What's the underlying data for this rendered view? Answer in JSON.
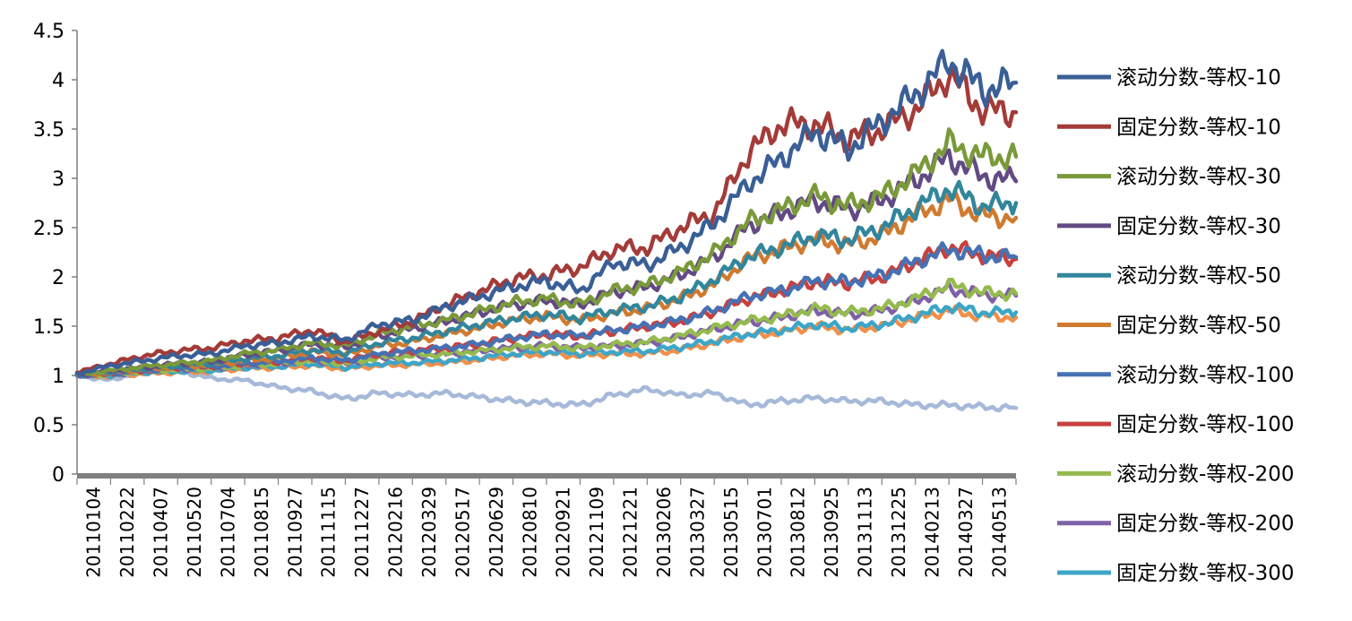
{
  "chart_data": {
    "type": "line",
    "title": "",
    "xlabel": "",
    "ylabel": "",
    "ylim": [
      0,
      4.5
    ],
    "yticks": [
      "0",
      "0.5",
      "1",
      "1.5",
      "2",
      "2.5",
      "3",
      "3.5",
      "4",
      "4.5"
    ],
    "ytick_values": [
      0,
      0.5,
      1,
      1.5,
      2,
      2.5,
      3,
      3.5,
      4,
      4.5
    ],
    "x_tick_labels": [
      "20110104",
      "20110222",
      "20110407",
      "20110520",
      "20110704",
      "20110815",
      "20110927",
      "20111115",
      "20111227",
      "20120216",
      "20120329",
      "20120517",
      "20120629",
      "20120810",
      "20120921",
      "20121109",
      "20121221",
      "20130206",
      "20130327",
      "20130515",
      "20130701",
      "20130812",
      "20130925",
      "20131113",
      "20131225",
      "20140213",
      "20140327",
      "20140513"
    ],
    "legend_position": "right",
    "series": [
      {
        "name": "滚动分数-等权-10",
        "color": "#3A5F96",
        "values": [
          1.02,
          1.1,
          1.15,
          1.2,
          1.22,
          1.3,
          1.33,
          1.4,
          1.36,
          1.52,
          1.56,
          1.7,
          1.8,
          1.9,
          1.96,
          1.86,
          2.15,
          2.12,
          2.3,
          2.55,
          2.95,
          3.2,
          3.48,
          3.3,
          3.58,
          3.85,
          4.2,
          3.9,
          3.97
        ]
      },
      {
        "name": "固定分数-等权-10",
        "color": "#A33B39",
        "values": [
          1.03,
          1.12,
          1.2,
          1.25,
          1.28,
          1.35,
          1.38,
          1.46,
          1.34,
          1.45,
          1.55,
          1.72,
          1.85,
          1.98,
          2.02,
          2.1,
          2.28,
          2.3,
          2.5,
          2.65,
          3.25,
          3.55,
          3.55,
          3.4,
          3.5,
          3.7,
          4.05,
          3.7,
          3.67
        ]
      },
      {
        "name": "滚动分数-等权-30",
        "color": "#7A9A3A",
        "values": [
          1.01,
          1.05,
          1.09,
          1.12,
          1.15,
          1.22,
          1.26,
          1.33,
          1.3,
          1.42,
          1.5,
          1.56,
          1.65,
          1.74,
          1.78,
          1.72,
          1.86,
          1.92,
          2.05,
          2.24,
          2.55,
          2.68,
          2.82,
          2.72,
          2.82,
          3.05,
          3.35,
          3.22,
          3.22
        ]
      },
      {
        "name": "固定分数-等权-30",
        "color": "#624A84",
        "values": [
          1.01,
          1.05,
          1.08,
          1.12,
          1.14,
          1.21,
          1.25,
          1.32,
          1.29,
          1.4,
          1.48,
          1.55,
          1.64,
          1.72,
          1.76,
          1.72,
          1.85,
          1.9,
          2.02,
          2.2,
          2.52,
          2.65,
          2.78,
          2.68,
          2.78,
          2.98,
          3.22,
          3.02,
          2.97
        ]
      },
      {
        "name": "滚动分数-等权-50",
        "color": "#32869C",
        "values": [
          1.01,
          1.04,
          1.07,
          1.1,
          1.12,
          1.17,
          1.2,
          1.26,
          1.23,
          1.33,
          1.38,
          1.45,
          1.52,
          1.58,
          1.62,
          1.58,
          1.66,
          1.7,
          1.8,
          1.98,
          2.2,
          2.3,
          2.42,
          2.38,
          2.5,
          2.7,
          2.9,
          2.72,
          2.75
        ]
      },
      {
        "name": "固定分数-等权-50",
        "color": "#D07A30",
        "values": [
          1.01,
          1.03,
          1.06,
          1.09,
          1.11,
          1.15,
          1.18,
          1.24,
          1.21,
          1.3,
          1.34,
          1.42,
          1.48,
          1.56,
          1.6,
          1.56,
          1.63,
          1.68,
          1.78,
          1.92,
          2.18,
          2.28,
          2.38,
          2.32,
          2.42,
          2.62,
          2.78,
          2.62,
          2.6
        ]
      },
      {
        "name": "滚动分数-等权-100",
        "color": "#4672B4",
        "values": [
          1.0,
          1.02,
          1.05,
          1.08,
          1.09,
          1.12,
          1.14,
          1.18,
          1.15,
          1.22,
          1.25,
          1.28,
          1.32,
          1.38,
          1.42,
          1.4,
          1.46,
          1.5,
          1.56,
          1.66,
          1.8,
          1.86,
          1.96,
          1.95,
          2.02,
          2.15,
          2.28,
          2.22,
          2.2
        ]
      },
      {
        "name": "固定分数-等权-100",
        "color": "#C9403E",
        "values": [
          1.0,
          1.02,
          1.05,
          1.08,
          1.09,
          1.12,
          1.14,
          1.18,
          1.15,
          1.22,
          1.25,
          1.28,
          1.32,
          1.38,
          1.42,
          1.4,
          1.45,
          1.5,
          1.55,
          1.65,
          1.78,
          1.86,
          1.95,
          1.94,
          2.0,
          2.15,
          2.3,
          2.22,
          2.18
        ]
      },
      {
        "name": "滚动分数-等权-200",
        "color": "#95BA4E",
        "values": [
          1.0,
          1.01,
          1.04,
          1.06,
          1.07,
          1.1,
          1.12,
          1.15,
          1.12,
          1.18,
          1.2,
          1.22,
          1.25,
          1.28,
          1.3,
          1.28,
          1.31,
          1.34,
          1.4,
          1.48,
          1.55,
          1.6,
          1.68,
          1.64,
          1.68,
          1.78,
          1.92,
          1.84,
          1.83
        ]
      },
      {
        "name": "固定分数-等权-200",
        "color": "#7E60A8",
        "values": [
          1.0,
          1.01,
          1.04,
          1.06,
          1.07,
          1.1,
          1.12,
          1.15,
          1.12,
          1.18,
          1.2,
          1.22,
          1.25,
          1.28,
          1.3,
          1.28,
          1.3,
          1.33,
          1.39,
          1.47,
          1.54,
          1.59,
          1.66,
          1.62,
          1.66,
          1.76,
          1.88,
          1.82,
          1.81
        ]
      },
      {
        "name": "固定分数-等权-300",
        "color": "#3CA6C8",
        "values": [
          1.0,
          1.0,
          1.03,
          1.04,
          1.05,
          1.08,
          1.09,
          1.12,
          1.08,
          1.12,
          1.13,
          1.15,
          1.18,
          1.22,
          1.24,
          1.22,
          1.24,
          1.25,
          1.29,
          1.35,
          1.42,
          1.46,
          1.52,
          1.48,
          1.52,
          1.6,
          1.7,
          1.64,
          1.64
        ]
      },
      {
        "name": "",
        "color": "#F0904A",
        "values": [
          1.0,
          0.99,
          1.02,
          1.03,
          1.04,
          1.07,
          1.08,
          1.1,
          1.07,
          1.1,
          1.11,
          1.13,
          1.16,
          1.2,
          1.22,
          1.2,
          1.22,
          1.22,
          1.26,
          1.33,
          1.4,
          1.44,
          1.5,
          1.46,
          1.5,
          1.58,
          1.66,
          1.6,
          1.59
        ]
      },
      {
        "name": "",
        "color": "#A6B9D9",
        "values": [
          1.0,
          0.95,
          1.05,
          1.05,
          0.97,
          0.95,
          0.88,
          0.84,
          0.76,
          0.82,
          0.8,
          0.82,
          0.78,
          0.74,
          0.72,
          0.7,
          0.8,
          0.86,
          0.8,
          0.82,
          0.7,
          0.74,
          0.77,
          0.74,
          0.74,
          0.7,
          0.7,
          0.68,
          0.67
        ]
      }
    ]
  },
  "colors": {
    "axis": "#808080",
    "axis_thick": "#808080"
  }
}
